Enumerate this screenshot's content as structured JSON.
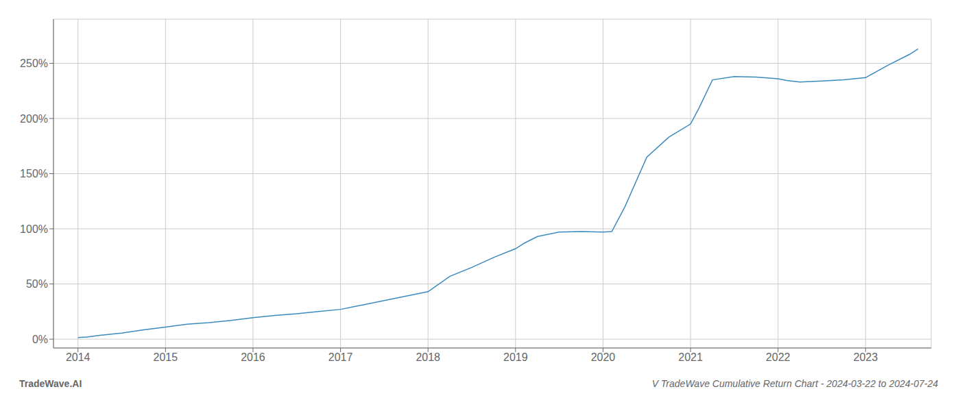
{
  "chart_data": {
    "type": "line",
    "title": "V TradeWave Cumulative Return Chart - 2024-03-22 to 2024-07-24",
    "annotations": [
      "TradeWave.AI"
    ],
    "color": "#3a8abf",
    "grid": true,
    "x": [
      2014.0,
      2014.1,
      2014.25,
      2014.5,
      2014.75,
      2015.0,
      2015.25,
      2015.5,
      2015.75,
      2016.0,
      2016.25,
      2016.5,
      2016.75,
      2017.0,
      2017.25,
      2017.5,
      2017.75,
      2018.0,
      2018.25,
      2018.5,
      2018.75,
      2019.0,
      2019.1,
      2019.25,
      2019.5,
      2019.75,
      2020.0,
      2020.1,
      2020.25,
      2020.5,
      2020.75,
      2021.0,
      2021.1,
      2021.25,
      2021.5,
      2021.75,
      2022.0,
      2022.1,
      2022.25,
      2022.5,
      2022.75,
      2023.0,
      2023.25,
      2023.5,
      2023.6
    ],
    "values": [
      1.5,
      2.0,
      3.5,
      5.5,
      8.5,
      11.0,
      13.5,
      15.0,
      17.0,
      19.5,
      21.5,
      23.0,
      25.0,
      27.0,
      31.0,
      35.0,
      39.0,
      43.0,
      57.0,
      65.0,
      74.0,
      82.0,
      87.0,
      93.0,
      97.0,
      97.5,
      97.0,
      97.5,
      120.0,
      165.0,
      183.0,
      195.0,
      210.0,
      235.0,
      238.0,
      237.5,
      236.0,
      234.5,
      233.0,
      234.0,
      235.0,
      237.0,
      248.0,
      258.0,
      263.0
    ],
    "xlim": [
      2013.72,
      2023.75
    ],
    "xticks": [
      2014,
      2015,
      2016,
      2017,
      2018,
      2019,
      2020,
      2021,
      2022,
      2023
    ],
    "ylim": [
      -8,
      290
    ],
    "yticks": [
      {
        "value": 0,
        "label": "0%"
      },
      {
        "value": 50,
        "label": "50%"
      },
      {
        "value": 100,
        "label": "100%"
      },
      {
        "value": 150,
        "label": "150%"
      },
      {
        "value": 200,
        "label": "200%"
      },
      {
        "value": 250,
        "label": "250%"
      }
    ]
  }
}
